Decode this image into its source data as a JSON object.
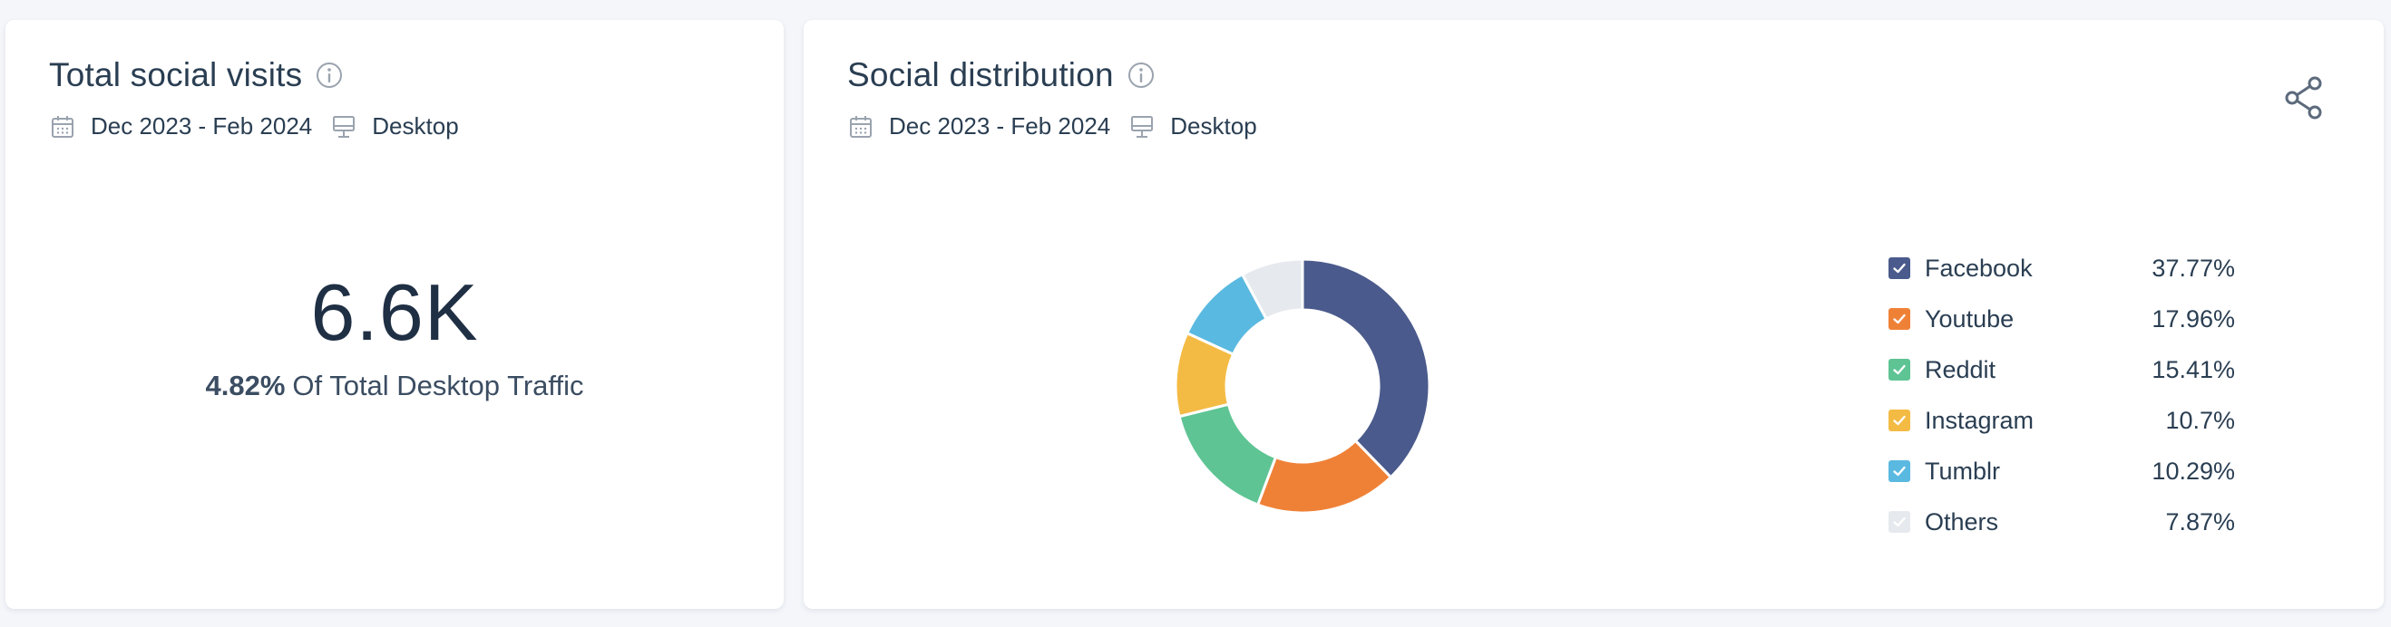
{
  "visits_card": {
    "title": "Total social visits",
    "date_range": "Dec 2023 - Feb 2024",
    "device": "Desktop",
    "value": "6.6K",
    "traffic_pct": "4.82%",
    "traffic_text": "Of Total Desktop Traffic"
  },
  "distribution_card": {
    "title": "Social distribution",
    "date_range": "Dec 2023 - Feb 2024",
    "device": "Desktop"
  },
  "icons": {
    "info": "info-icon",
    "calendar": "calendar-icon",
    "device": "desktop-icon",
    "share": "share-icon",
    "check": "check-icon"
  },
  "chart_data": {
    "type": "pie",
    "donut": true,
    "categories": [
      "Facebook",
      "Youtube",
      "Reddit",
      "Instagram",
      "Tumblr",
      "Others"
    ],
    "values": [
      37.77,
      17.96,
      15.41,
      10.7,
      10.29,
      7.87
    ],
    "labels": [
      "37.77%",
      "17.96%",
      "15.41%",
      "10.7%",
      "10.29%",
      "7.87%"
    ],
    "colors": [
      "#4a5a8c",
      "#ef8137",
      "#5ec494",
      "#f4bb44",
      "#5ab9e0",
      "#e6e9ee"
    ],
    "legend_position": "right"
  }
}
